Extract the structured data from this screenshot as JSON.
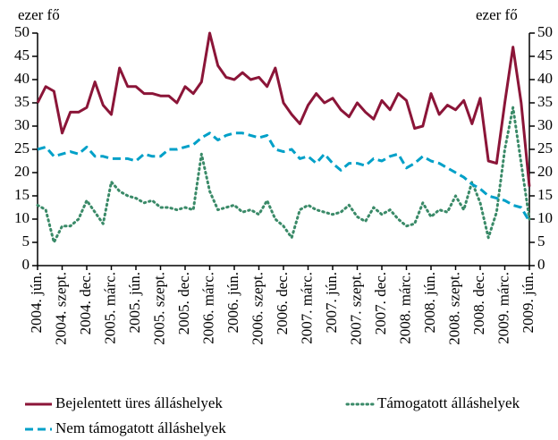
{
  "chart_data": {
    "type": "line",
    "y_label": "ezer fő",
    "y2_label": "ezer fő",
    "categories": [
      "2004. jún.",
      null,
      null,
      "2004. szept.",
      null,
      null,
      "2004. dec.",
      null,
      null,
      "2005. márc.",
      null,
      null,
      "2005. jún.",
      null,
      null,
      "2005. szept.",
      null,
      null,
      "2005. dec.",
      null,
      null,
      "2006. márc.",
      null,
      null,
      "2006. jún.",
      null,
      null,
      "2006. szept.",
      null,
      null,
      "2006. dec.",
      null,
      null,
      "2007. márc.",
      null,
      null,
      "2007. jún.",
      null,
      null,
      "2007. szept.",
      null,
      null,
      "2007. dec.",
      null,
      null,
      "2008. márc.",
      null,
      null,
      "2008. jún.",
      null,
      null,
      "2008. szept.",
      null,
      null,
      "2008. dec.",
      null,
      null,
      "2009. márc.",
      null,
      null,
      "2009. jún."
    ],
    "series": [
      {
        "name": "Bejelentett üres álláshelyek",
        "color": "#8b1538",
        "style": "solid",
        "values": [
          35,
          38.5,
          37.5,
          28.5,
          33,
          33,
          34,
          39.5,
          34.5,
          32.5,
          42.5,
          38.5,
          38.5,
          37,
          37,
          36.5,
          36.5,
          35,
          38.5,
          37,
          39.5,
          50,
          43,
          40.5,
          40,
          41.5,
          40,
          40.5,
          38.5,
          42.5,
          35,
          32.5,
          30.5,
          34.5,
          37,
          35,
          36,
          33.5,
          32,
          35,
          33,
          31.5,
          35.5,
          33.5,
          37,
          35.5,
          29.5,
          30,
          37,
          32.5,
          34.5,
          33.5,
          35.5,
          30.5,
          36,
          22.5,
          22,
          35,
          47,
          35,
          17
        ]
      },
      {
        "name": "Támogatott álláshelyek",
        "color": "#3a8a68",
        "style": "dotted",
        "values": [
          13,
          12,
          5,
          8.5,
          8.5,
          10,
          14,
          11.5,
          9,
          18,
          16,
          15,
          14.5,
          13.5,
          14,
          12.5,
          12.5,
          12,
          12.5,
          12,
          24,
          16,
          12,
          12.5,
          13,
          11.5,
          12,
          11,
          14,
          10,
          8.5,
          6,
          12,
          13,
          12,
          11.5,
          11,
          11.5,
          13,
          10.5,
          9.5,
          12.5,
          11,
          12,
          10,
          8.5,
          9,
          13.5,
          10.5,
          12,
          11.5,
          15,
          12,
          18,
          13.5,
          6,
          11.5,
          25,
          34,
          22,
          10
        ]
      },
      {
        "name": "Nem támogatott álláshelyek",
        "color": "#00a0c8",
        "style": "dashed",
        "values": [
          25,
          25.5,
          23.5,
          24,
          24.5,
          24,
          25.5,
          23.5,
          23.5,
          23,
          23,
          23,
          22.5,
          24,
          23.5,
          23.5,
          25,
          25,
          25.5,
          26,
          27.5,
          28.5,
          27,
          28,
          28.5,
          28.5,
          28,
          27.5,
          28,
          25,
          24.5,
          25,
          23,
          23.5,
          22,
          24,
          22,
          20.5,
          22,
          22,
          21.5,
          23,
          22.5,
          23.5,
          24,
          21,
          22,
          23.5,
          22.5,
          22,
          21,
          20,
          19,
          17.5,
          16.5,
          15,
          14.5,
          14,
          13,
          12.5,
          9.5
        ]
      }
    ],
    "ylim": [
      0,
      50
    ],
    "yticks": [
      0,
      5,
      10,
      15,
      20,
      25,
      30,
      35,
      40,
      45,
      50
    ],
    "y2lim": [
      0,
      50
    ],
    "y2ticks": [
      0,
      5,
      10,
      15,
      20,
      25,
      30,
      35,
      40,
      45,
      50
    ],
    "grid": false,
    "legend": "bottom"
  }
}
